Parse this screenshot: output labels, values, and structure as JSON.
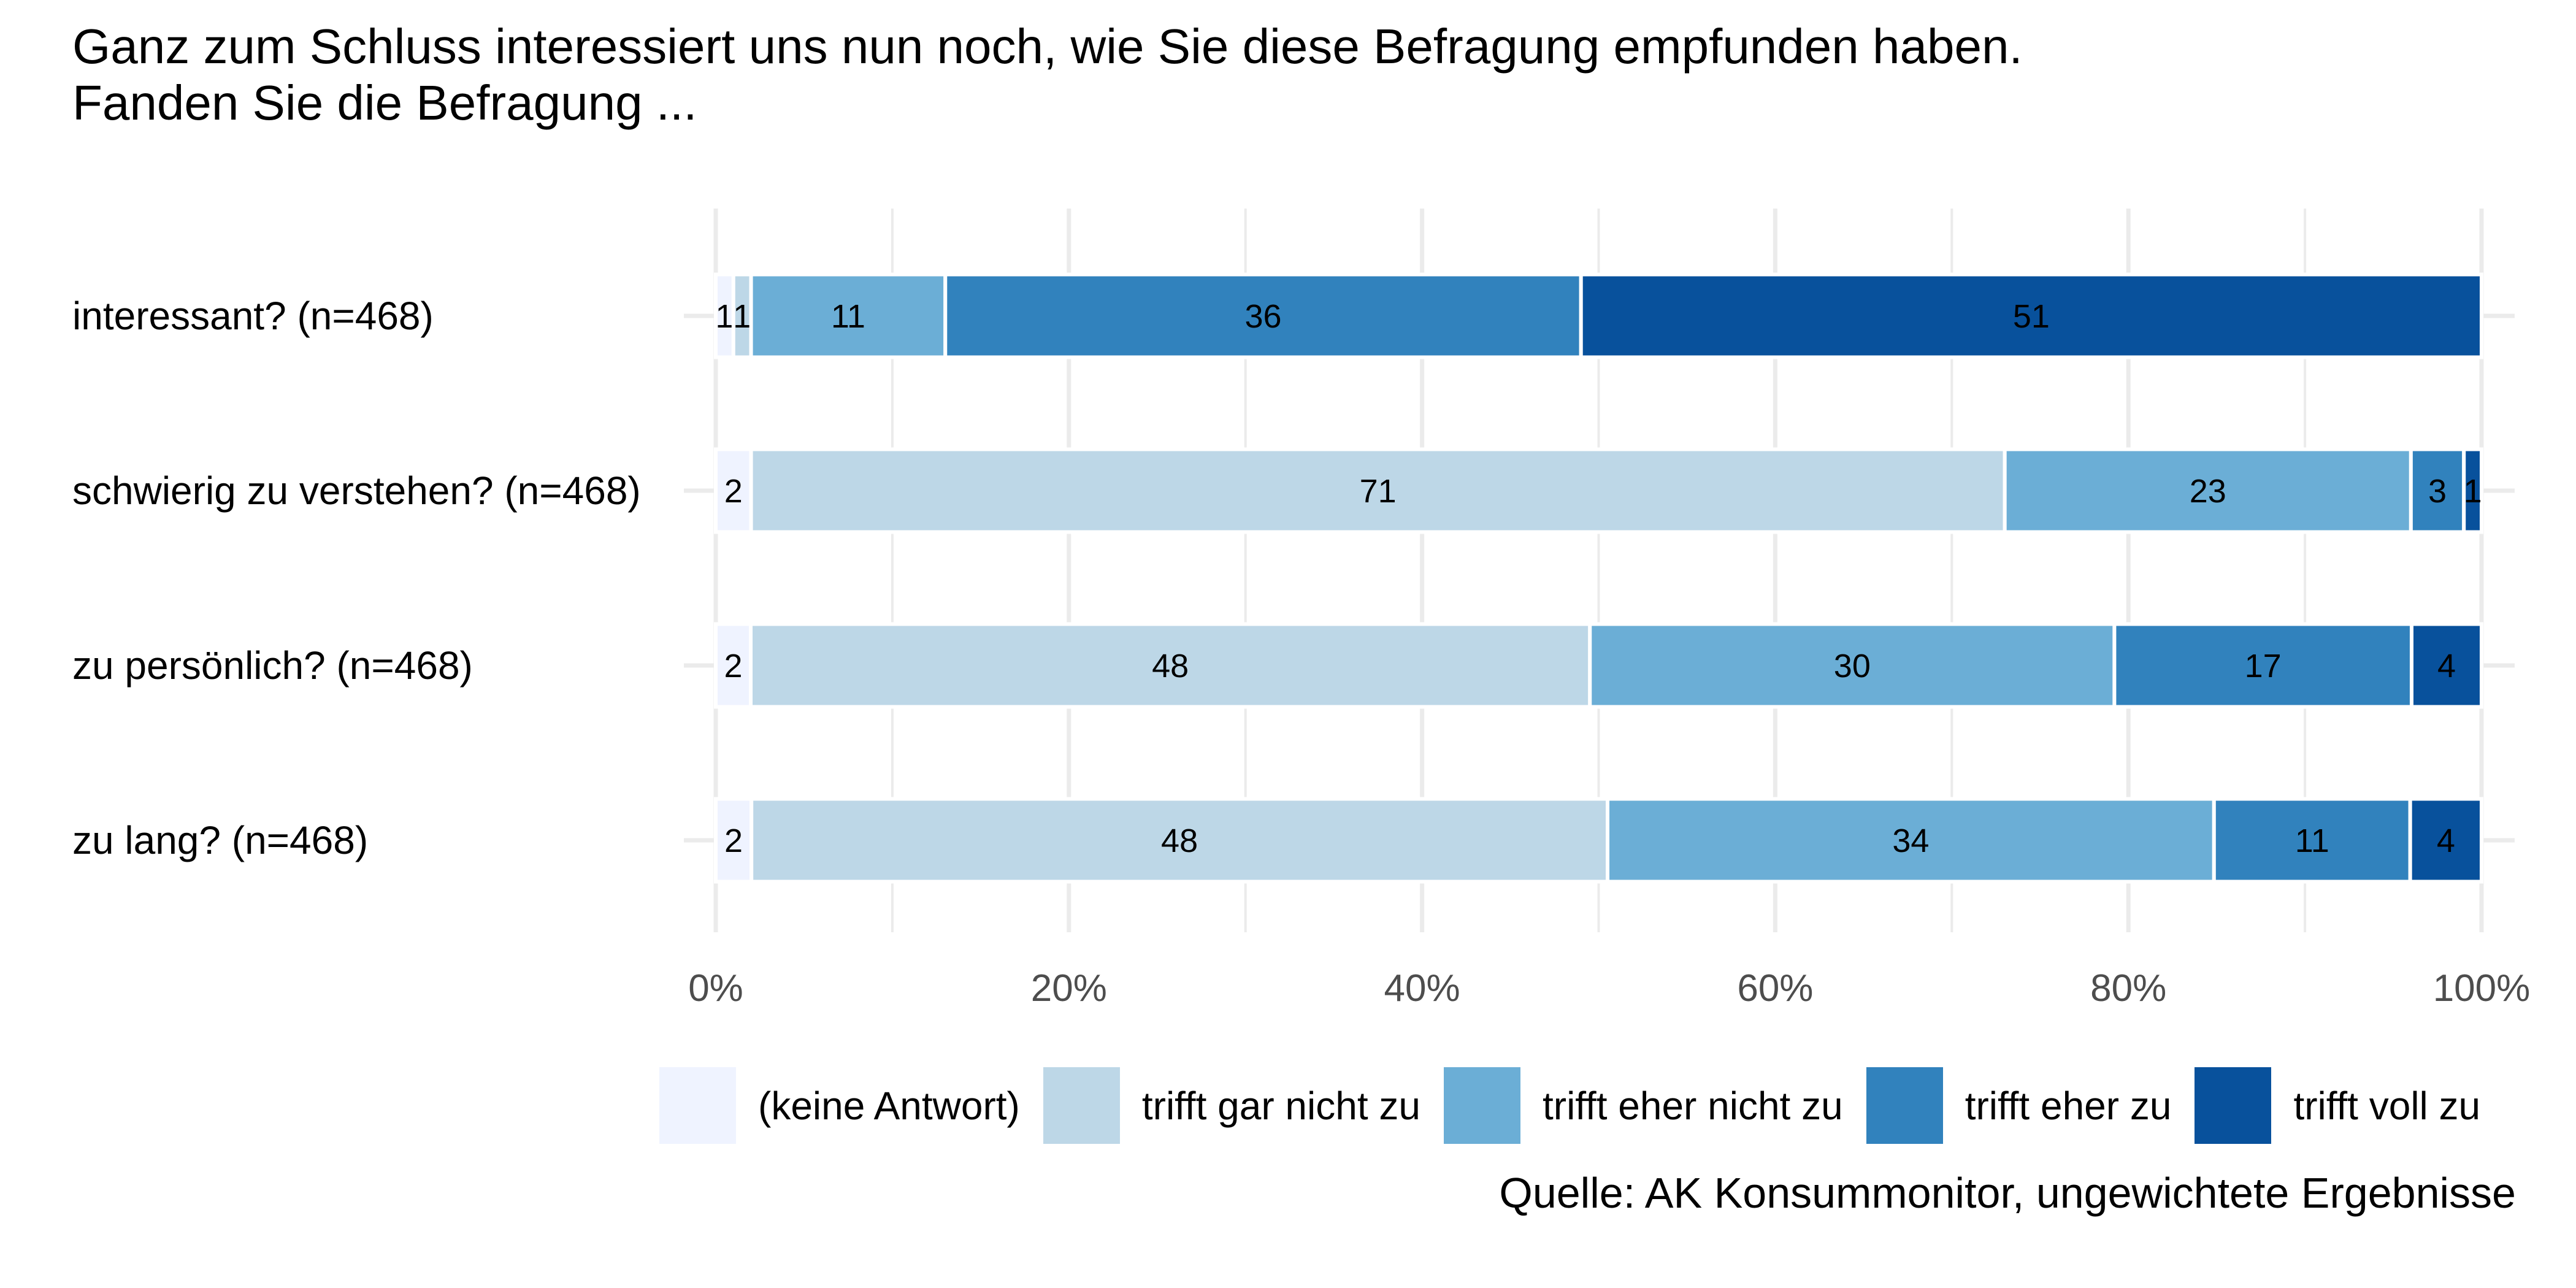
{
  "chart_data": {
    "type": "bar",
    "orientation": "horizontal",
    "stacked": true,
    "title": "Ganz zum Schluss interessiert uns nun noch, wie Sie diese Befragung empfunden haben.",
    "subtitle": "Fanden Sie die Befragung ...",
    "categories": [
      "interessant? (n=468)",
      "schwierig zu verstehen? (n=468)",
      "zu persönlich? (n=468)",
      "zu lang? (n=468)"
    ],
    "series": [
      {
        "name": "(keine Antwort)",
        "color": "#eff3ff",
        "values": [
          1,
          2,
          2,
          2
        ]
      },
      {
        "name": "trifft gar nicht zu",
        "color": "#bdd7e7",
        "values": [
          1,
          71,
          48,
          48
        ]
      },
      {
        "name": "trifft eher nicht zu",
        "color": "#6baed6",
        "values": [
          11,
          23,
          30,
          34
        ]
      },
      {
        "name": "trifft eher zu",
        "color": "#3182bd",
        "values": [
          36,
          3,
          17,
          11
        ]
      },
      {
        "name": "trifft voll zu",
        "color": "#08519c",
        "values": [
          51,
          1,
          4,
          4
        ]
      }
    ],
    "xlim": [
      0,
      100
    ],
    "xticks": [
      "0%",
      "20%",
      "40%",
      "60%",
      "80%",
      "100%"
    ],
    "grid": true,
    "legend_position": "bottom",
    "caption": "Quelle: AK Konsummonitor, ungewichtete Ergebnisse"
  }
}
